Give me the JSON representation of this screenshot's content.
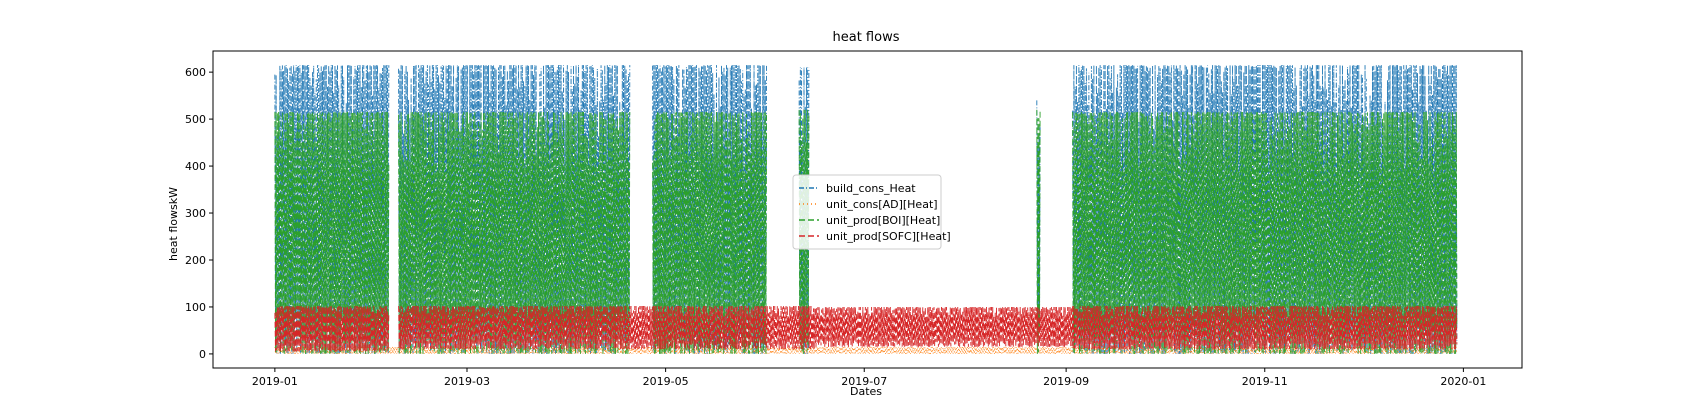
{
  "chart_data": {
    "type": "line",
    "title": "heat flows",
    "xlabel": "Dates",
    "ylabel": "heat flowskW",
    "xlim": [
      "2018-12-13",
      "2020-01-19"
    ],
    "ylim": [
      -30,
      645
    ],
    "x_ticks": [
      "2019-01",
      "2019-03",
      "2019-05",
      "2019-07",
      "2019-09",
      "2019-11",
      "2020-01"
    ],
    "y_ticks": [
      0,
      100,
      200,
      300,
      400,
      500,
      600
    ],
    "grid": false,
    "legend_position": "center",
    "series": [
      {
        "name": "build_cons_Heat",
        "color": "#1f77b4",
        "line_style": "dashdot",
        "segments": [
          {
            "start": "2019-01-01",
            "end": "2019-02-05",
            "min": 0,
            "max": 615
          },
          {
            "start": "2019-02-08",
            "end": "2019-04-20",
            "min": 0,
            "max": 615
          },
          {
            "start": "2019-04-27",
            "end": "2019-06-01",
            "min": 0,
            "max": 615
          },
          {
            "start": "2019-06-11",
            "end": "2019-06-14",
            "min": 0,
            "max": 610
          },
          {
            "start": "2019-08-23",
            "end": "2019-08-24",
            "min": 0,
            "max": 540
          },
          {
            "start": "2019-09-03",
            "end": "2019-12-30",
            "min": 0,
            "max": 615
          }
        ]
      },
      {
        "name": "unit_cons[AD][Heat]",
        "color": "#ff7f0e",
        "line_style": "dotted",
        "segments": [
          {
            "start": "2019-01-01",
            "end": "2019-12-30",
            "min": 0,
            "max": 15
          }
        ]
      },
      {
        "name": "unit_prod[BOI][Heat]",
        "color": "#2ca02c",
        "line_style": "dashed",
        "segments": [
          {
            "start": "2019-01-01",
            "end": "2019-02-05",
            "min": 0,
            "max": 515
          },
          {
            "start": "2019-02-08",
            "end": "2019-04-20",
            "min": 0,
            "max": 515
          },
          {
            "start": "2019-04-27",
            "end": "2019-06-01",
            "min": 0,
            "max": 515
          },
          {
            "start": "2019-06-11",
            "end": "2019-06-14",
            "min": 0,
            "max": 520
          },
          {
            "start": "2019-08-23",
            "end": "2019-08-24",
            "min": 0,
            "max": 520
          },
          {
            "start": "2019-09-03",
            "end": "2019-12-30",
            "min": 0,
            "max": 515
          }
        ]
      },
      {
        "name": "unit_prod[SOFC][Heat]",
        "color": "#d62728",
        "line_style": "dashed",
        "segments": [
          {
            "start": "2019-01-01",
            "end": "2019-02-05",
            "min": 5,
            "max": 102
          },
          {
            "start": "2019-02-08",
            "end": "2019-06-16",
            "min": 10,
            "max": 102
          },
          {
            "start": "2019-06-16",
            "end": "2019-09-03",
            "min": 15,
            "max": 100
          },
          {
            "start": "2019-09-03",
            "end": "2019-12-30",
            "min": 10,
            "max": 102
          }
        ]
      }
    ]
  }
}
